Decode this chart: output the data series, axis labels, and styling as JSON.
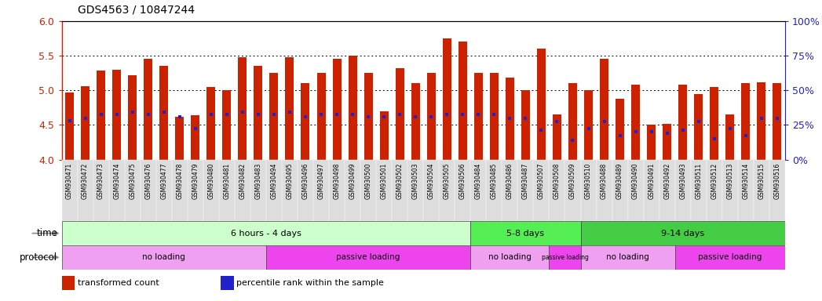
{
  "title": "GDS4563 / 10847244",
  "samples": [
    "GSM930471",
    "GSM930472",
    "GSM930473",
    "GSM930474",
    "GSM930475",
    "GSM930476",
    "GSM930477",
    "GSM930478",
    "GSM930479",
    "GSM930480",
    "GSM930481",
    "GSM930482",
    "GSM930483",
    "GSM930494",
    "GSM930495",
    "GSM930496",
    "GSM930497",
    "GSM930498",
    "GSM930499",
    "GSM930500",
    "GSM930501",
    "GSM930502",
    "GSM930503",
    "GSM930504",
    "GSM930505",
    "GSM930506",
    "GSM930484",
    "GSM930485",
    "GSM930486",
    "GSM930487",
    "GSM930507",
    "GSM930508",
    "GSM930509",
    "GSM930510",
    "GSM930488",
    "GSM930489",
    "GSM930490",
    "GSM930491",
    "GSM930492",
    "GSM930493",
    "GSM930511",
    "GSM930512",
    "GSM930513",
    "GSM930514",
    "GSM930515",
    "GSM930516"
  ],
  "bar_values": [
    4.97,
    5.06,
    5.28,
    5.3,
    5.22,
    5.45,
    5.35,
    4.62,
    4.64,
    5.05,
    5.0,
    5.48,
    5.35,
    5.25,
    5.48,
    5.1,
    5.25,
    5.45,
    5.5,
    5.25,
    4.7,
    5.32,
    5.1,
    5.25,
    5.75,
    5.7,
    5.25,
    5.25,
    5.18,
    5.0,
    5.6,
    4.65,
    5.1,
    5.0,
    5.45,
    4.88,
    5.08,
    4.5,
    4.52,
    5.08,
    4.95,
    5.05,
    4.65,
    5.1,
    5.12,
    5.1
  ],
  "dot_values": [
    4.56,
    4.6,
    4.65,
    4.65,
    4.68,
    4.65,
    4.68,
    4.62,
    4.45,
    4.65,
    4.65,
    4.68,
    4.65,
    4.65,
    4.68,
    4.62,
    4.65,
    4.65,
    4.65,
    4.62,
    4.62,
    4.65,
    4.62,
    4.62,
    4.65,
    4.65,
    4.65,
    4.65,
    4.6,
    4.6,
    4.42,
    4.55,
    4.28,
    4.45,
    4.55,
    4.35,
    4.4,
    4.4,
    4.38,
    4.42,
    4.55,
    4.3,
    4.45,
    4.35,
    4.6,
    4.6
  ],
  "bar_color": "#cc2200",
  "dot_color": "#2222cc",
  "ylim_left": [
    4.0,
    6.0
  ],
  "yticks_left": [
    4.0,
    4.5,
    5.0,
    5.5,
    6.0
  ],
  "ylim_right": [
    0,
    100
  ],
  "yticks_right": [
    0,
    25,
    50,
    75,
    100
  ],
  "ylabel_right_labels": [
    "0%",
    "25%",
    "50%",
    "75%",
    "100%"
  ],
  "time_groups": [
    {
      "label": "6 hours - 4 days",
      "start": 0,
      "end": 26,
      "color": "#ccffcc"
    },
    {
      "label": "5-8 days",
      "start": 26,
      "end": 33,
      "color": "#55ee55"
    },
    {
      "label": "9-14 days",
      "start": 33,
      "end": 46,
      "color": "#44cc44"
    }
  ],
  "protocol_groups": [
    {
      "label": "no loading",
      "start": 0,
      "end": 13,
      "color": "#f0a0f0"
    },
    {
      "label": "passive loading",
      "start": 13,
      "end": 26,
      "color": "#ee44ee"
    },
    {
      "label": "no loading",
      "start": 26,
      "end": 31,
      "color": "#f0a0f0"
    },
    {
      "label": "passive loading",
      "start": 31,
      "end": 33,
      "color": "#ee44ee"
    },
    {
      "label": "no loading",
      "start": 33,
      "end": 39,
      "color": "#f0a0f0"
    },
    {
      "label": "passive loading",
      "start": 39,
      "end": 46,
      "color": "#ee44ee"
    }
  ],
  "legend_items": [
    {
      "label": "transformed count",
      "color": "#cc2200"
    },
    {
      "label": "percentile rank within the sample",
      "color": "#2222cc"
    }
  ],
  "bar_width": 0.55,
  "background_color": "#ffffff",
  "axis_left_color": "#cc2200",
  "axis_right_color": "#2222cc",
  "xtick_bg_color": "#dddddd"
}
